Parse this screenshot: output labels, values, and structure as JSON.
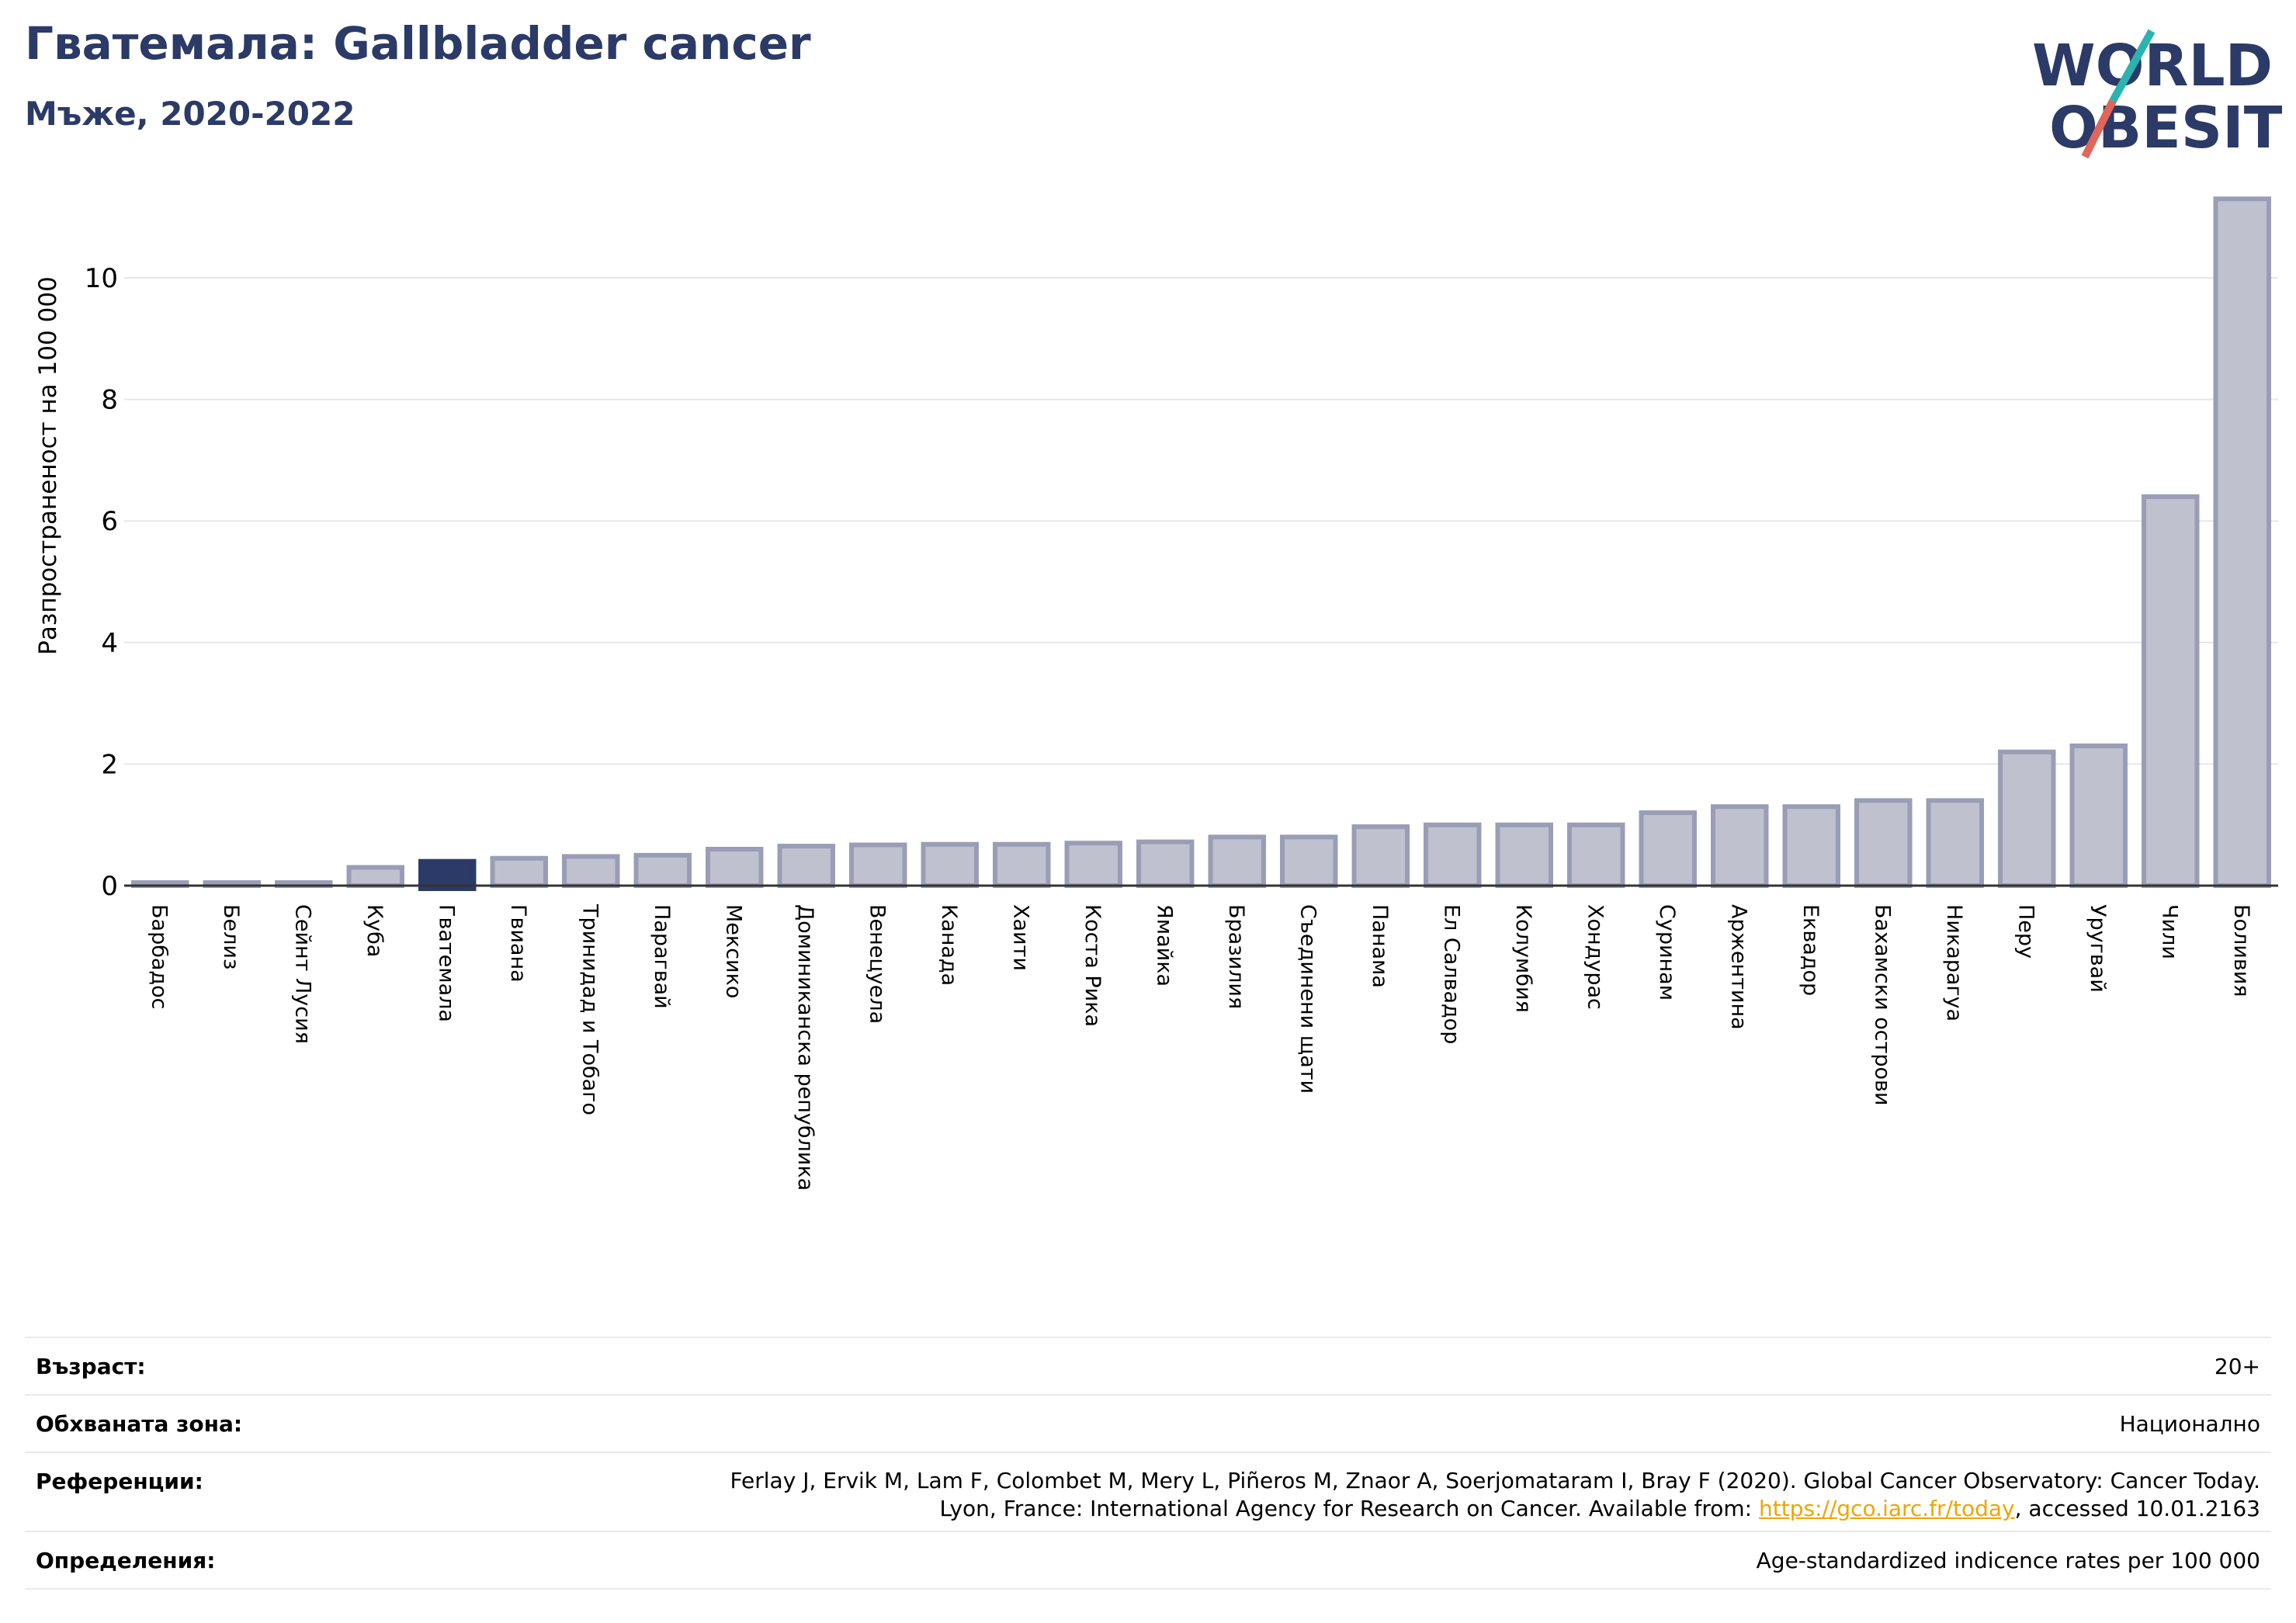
{
  "header": {
    "title": "Гватемала: Gallbladder cancer",
    "subtitle": "Мъже, 2020-2022"
  },
  "logo": {
    "line1": "WORLD",
    "line2": "OBESITY"
  },
  "chart_data": {
    "type": "bar",
    "title": "Гватемала: Gallbladder cancer",
    "subtitle": "Мъже, 2020-2022",
    "ylabel": "Разпространеност  на 100 000",
    "xlabel": "",
    "ylim": [
      0,
      11.5
    ],
    "yticks": [
      0,
      2,
      4,
      6,
      8,
      10
    ],
    "grid": true,
    "highlight": "Гватемала",
    "colors": {
      "bar": "#bfc1cf",
      "bar_edge": "#9a9db6",
      "highlight": "#2b3a67"
    },
    "categories": [
      "Барбадос",
      "Белиз",
      "Сейнт Лусия",
      "Куба",
      "Гватемала",
      "Гвиана",
      "Тринидад и Тобаго",
      "Парагвай",
      "Мексико",
      "Доминиканска република",
      "Венецуела",
      "Канада",
      "Хаити",
      "Коста Рика",
      "Ямайка",
      "Бразилия",
      "Съединени щати",
      "Панама",
      "Ел Салвадор",
      "Колумбия",
      "Хондурас",
      "Суринам",
      "Аржентина",
      "Еквадор",
      "Бахамски острови",
      "Никарагуа",
      "Перу",
      "Уругвай",
      "Чили",
      "Боливия"
    ],
    "values": [
      0.05,
      0.05,
      0.05,
      0.3,
      0.4,
      0.45,
      0.48,
      0.5,
      0.6,
      0.65,
      0.67,
      0.68,
      0.68,
      0.7,
      0.72,
      0.8,
      0.8,
      0.97,
      1.0,
      1.0,
      1.0,
      1.2,
      1.3,
      1.3,
      1.4,
      1.4,
      2.2,
      2.3,
      6.4,
      11.3
    ]
  },
  "info": {
    "age": {
      "label": "Възраст:",
      "value": "20+"
    },
    "area": {
      "label": "Обхваната зона:",
      "value": "Национално"
    },
    "references": {
      "label": "Референции:",
      "line1": "Ferlay J, Ervik M, Lam F, Colombet M, Mery L, Piñeros M, Znaor A, Soerjomataram I, Bray F (2020). Global Cancer Observatory: Cancer Today.",
      "line2_prefix": "Lyon, France: International Agency for Research on Cancer. Available from: ",
      "link": "https://gco.iarc.fr/today",
      "line2_suffix": ", accessed 10.01.2163"
    },
    "definitions": {
      "label": "Определения:",
      "value": "Age-standardized indicence rates per 100 000"
    }
  }
}
